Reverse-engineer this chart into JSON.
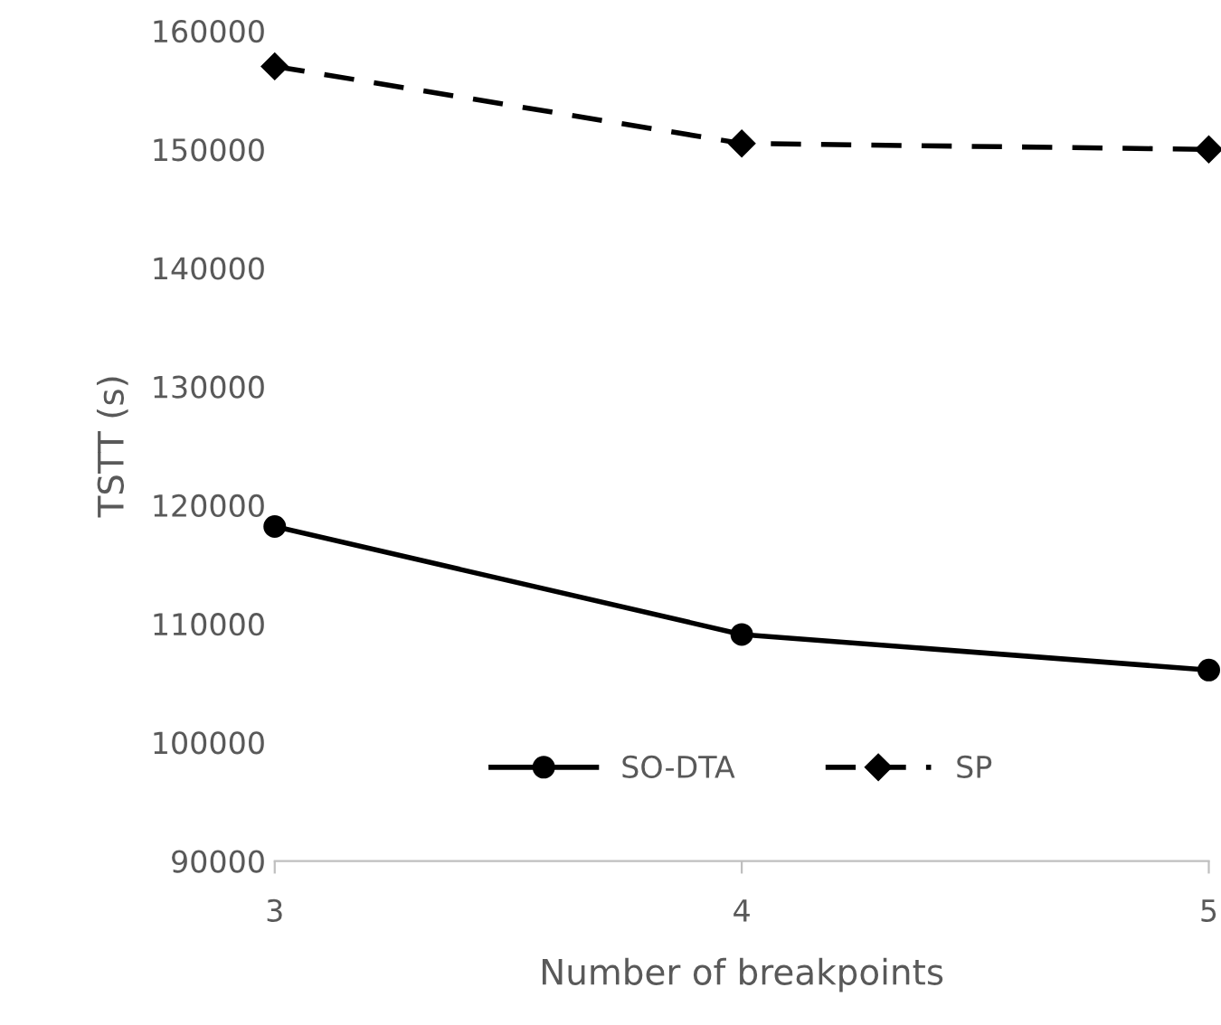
{
  "chart_data": {
    "type": "line",
    "xlabel": "Number of breakpoints",
    "ylabel": "TSTT (s)",
    "x": [
      3,
      4,
      5
    ],
    "series": [
      {
        "name": "SO-DTA",
        "color": "#000000",
        "values": [
          118200,
          109100,
          106100
        ],
        "marker": "circle",
        "line_style": "solid"
      },
      {
        "name": "SP",
        "color": "#000000",
        "values": [
          157000,
          150500,
          150000
        ],
        "marker": "diamond",
        "line_style": "dashed"
      }
    ],
    "xlim": [
      3,
      5
    ],
    "xticks": [
      3,
      4,
      5
    ],
    "ylim": [
      90000,
      160000
    ],
    "yticks": [
      90000,
      100000,
      110000,
      120000,
      130000,
      140000,
      150000,
      160000
    ],
    "grid": false,
    "legend": "bottom"
  }
}
